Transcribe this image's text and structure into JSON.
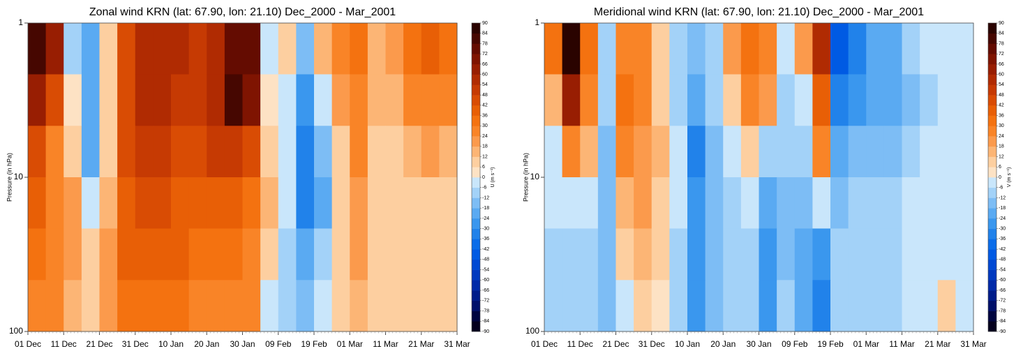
{
  "chart_data": [
    {
      "type": "heatmap",
      "title": "Zonal wind KRN (lat: 67.90, lon: 21.10) Dec_2000 - Mar_2001",
      "ylabel": "Pressure (in hPa)",
      "colorbar_label": "U (m s⁻¹)",
      "xlim": [
        0,
        120
      ],
      "xticks": [
        {
          "value": 0,
          "label": "01 Dec"
        },
        {
          "value": 10,
          "label": "11 Dec"
        },
        {
          "value": 20,
          "label": "21 Dec"
        },
        {
          "value": 30,
          "label": "31 Dec"
        },
        {
          "value": 40,
          "label": "10 Jan"
        },
        {
          "value": 50,
          "label": "20 Jan"
        },
        {
          "value": 60,
          "label": "30 Jan"
        },
        {
          "value": 70,
          "label": "09 Feb"
        },
        {
          "value": 80,
          "label": "19 Feb"
        },
        {
          "value": 90,
          "label": "01 Mar"
        },
        {
          "value": 100,
          "label": "11 Mar"
        },
        {
          "value": 110,
          "label": "21 Mar"
        },
        {
          "value": 120,
          "label": "31 Mar"
        }
      ],
      "ylim": [
        100,
        1
      ],
      "yticks": [
        1,
        10,
        100
      ],
      "y_scale": "log",
      "xbins": [
        0,
        5,
        10,
        15,
        20,
        25,
        30,
        35,
        40,
        45,
        50,
        55,
        60,
        65,
        70,
        75,
        80,
        85,
        90,
        95,
        100,
        105,
        110,
        115,
        120
      ],
      "ybins": [
        1,
        2.15,
        4.64,
        10,
        21.5,
        46.4,
        100
      ],
      "values": [
        [
          80,
          60,
          -12,
          -20,
          10,
          42,
          54,
          54,
          54,
          48,
          54,
          72,
          72,
          -6,
          6,
          -18,
          12,
          24,
          30,
          12,
          18,
          30,
          36,
          30
        ],
        [
          60,
          42,
          0,
          -24,
          6,
          42,
          54,
          54,
          48,
          48,
          54,
          78,
          66,
          0,
          -6,
          -30,
          -6,
          18,
          24,
          12,
          12,
          24,
          24,
          24
        ],
        [
          42,
          24,
          6,
          -24,
          6,
          42,
          48,
          48,
          42,
          42,
          48,
          48,
          42,
          6,
          -6,
          -36,
          -18,
          6,
          24,
          6,
          6,
          12,
          18,
          12
        ],
        [
          36,
          24,
          18,
          -6,
          12,
          36,
          42,
          42,
          36,
          36,
          36,
          36,
          30,
          12,
          -6,
          -36,
          -24,
          6,
          18,
          6,
          6,
          6,
          6,
          6
        ],
        [
          30,
          24,
          18,
          6,
          18,
          36,
          36,
          36,
          36,
          30,
          30,
          30,
          24,
          6,
          -12,
          -24,
          -12,
          6,
          18,
          6,
          6,
          6,
          6,
          6
        ],
        [
          24,
          24,
          12,
          6,
          18,
          30,
          30,
          30,
          30,
          24,
          24,
          24,
          24,
          -6,
          -12,
          -18,
          -6,
          6,
          12,
          6,
          6,
          6,
          6,
          6
        ]
      ],
      "levels": [
        -90,
        -84,
        -78,
        -72,
        -66,
        -60,
        -54,
        -48,
        -42,
        -36,
        -30,
        -24,
        -18,
        -12,
        -6,
        0,
        6,
        12,
        18,
        24,
        30,
        36,
        42,
        48,
        54,
        60,
        66,
        72,
        78,
        84,
        90
      ],
      "colors": [
        "#04001e",
        "#000540",
        "#00106a",
        "#001d8a",
        "#002aa8",
        "#0039bf",
        "#0049d3",
        "#005ae3",
        "#0b6de9",
        "#2182ea",
        "#3a97ee",
        "#5aaaf2",
        "#7dbdf5",
        "#a3d2f8",
        "#c9e6fb",
        "#fde2c4",
        "#fdcfa0",
        "#fcb575",
        "#fb9a4c",
        "#f98427",
        "#f47210",
        "#e85f06",
        "#d94c04",
        "#c63a03",
        "#b02b02",
        "#981e02",
        "#7f1401",
        "#640c01",
        "#460701",
        "#2a0300"
      ]
    },
    {
      "type": "heatmap",
      "title": "Meridional wind KRN (lat: 67.90, lon: 21.10) Dec_2000 - Mar_2001",
      "ylabel": "Pressure (in hPa)",
      "colorbar_label": "V (m s⁻¹)",
      "xlim": [
        0,
        120
      ],
      "xticks": [
        {
          "value": 0,
          "label": "01 Dec"
        },
        {
          "value": 10,
          "label": "11 Dec"
        },
        {
          "value": 20,
          "label": "21 Dec"
        },
        {
          "value": 30,
          "label": "31 Dec"
        },
        {
          "value": 40,
          "label": "10 Jan"
        },
        {
          "value": 50,
          "label": "20 Jan"
        },
        {
          "value": 60,
          "label": "30 Jan"
        },
        {
          "value": 70,
          "label": "09 Feb"
        },
        {
          "value": 80,
          "label": "19 Feb"
        },
        {
          "value": 90,
          "label": "01 Mar"
        },
        {
          "value": 100,
          "label": "11 Mar"
        },
        {
          "value": 110,
          "label": "21 Mar"
        },
        {
          "value": 120,
          "label": "31 Mar"
        }
      ],
      "ylim": [
        100,
        1
      ],
      "yticks": [
        1,
        10,
        100
      ],
      "y_scale": "log",
      "xbins": [
        0,
        5,
        10,
        15,
        20,
        25,
        30,
        35,
        40,
        45,
        50,
        55,
        60,
        65,
        70,
        75,
        80,
        85,
        90,
        95,
        100,
        105,
        110,
        115,
        120
      ],
      "ybins": [
        1,
        2.15,
        4.64,
        10,
        21.5,
        46.4,
        100
      ],
      "values": [
        [
          30,
          84,
          30,
          -12,
          24,
          24,
          6,
          -12,
          -18,
          -12,
          18,
          30,
          24,
          -6,
          18,
          54,
          -48,
          -36,
          -24,
          -24,
          -12,
          -6,
          -6,
          -6
        ],
        [
          12,
          60,
          24,
          -12,
          30,
          24,
          6,
          -12,
          -24,
          -12,
          6,
          24,
          18,
          -12,
          -6,
          36,
          -36,
          -30,
          -24,
          -24,
          -18,
          -12,
          -6,
          -6
        ],
        [
          -6,
          24,
          12,
          -18,
          24,
          18,
          12,
          -6,
          -36,
          -18,
          -6,
          6,
          -12,
          -12,
          -12,
          24,
          -24,
          -18,
          -18,
          -18,
          -12,
          -6,
          -6,
          -6
        ],
        [
          -6,
          -6,
          -6,
          -18,
          12,
          18,
          6,
          -6,
          -30,
          -18,
          -12,
          -6,
          -24,
          -18,
          -18,
          -6,
          -18,
          -12,
          -12,
          -12,
          -6,
          -6,
          -6,
          -6
        ],
        [
          -12,
          -12,
          -12,
          -18,
          6,
          12,
          6,
          -12,
          -30,
          -18,
          -12,
          -12,
          -30,
          -18,
          -24,
          -30,
          -12,
          -12,
          -12,
          -12,
          -6,
          -6,
          -6,
          -6
        ],
        [
          -12,
          -12,
          -12,
          -18,
          -6,
          6,
          0,
          -12,
          -30,
          -18,
          -12,
          -12,
          -30,
          -12,
          -24,
          -36,
          -12,
          -12,
          -12,
          -12,
          -6,
          -6,
          6,
          -6
        ]
      ],
      "levels": [
        -90,
        -84,
        -78,
        -72,
        -66,
        -60,
        -54,
        -48,
        -42,
        -36,
        -30,
        -24,
        -18,
        -12,
        -6,
        0,
        6,
        12,
        18,
        24,
        30,
        36,
        42,
        48,
        54,
        60,
        66,
        72,
        78,
        84,
        90
      ],
      "colors": [
        "#04001e",
        "#000540",
        "#00106a",
        "#001d8a",
        "#002aa8",
        "#0039bf",
        "#0049d3",
        "#005ae3",
        "#0b6de9",
        "#2182ea",
        "#3a97ee",
        "#5aaaf2",
        "#7dbdf5",
        "#a3d2f8",
        "#c9e6fb",
        "#fde2c4",
        "#fdcfa0",
        "#fcb575",
        "#fb9a4c",
        "#f98427",
        "#f47210",
        "#e85f06",
        "#d94c04",
        "#c63a03",
        "#b02b02",
        "#981e02",
        "#7f1401",
        "#640c01",
        "#460701",
        "#2a0300"
      ]
    }
  ]
}
